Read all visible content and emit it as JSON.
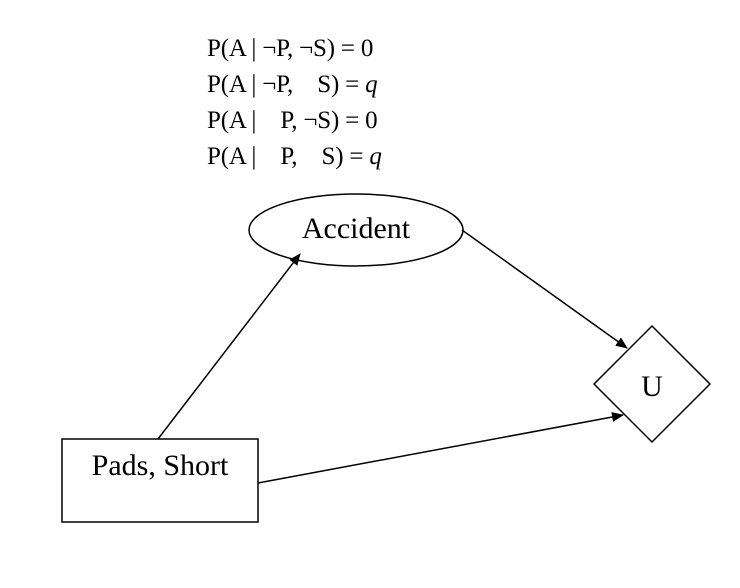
{
  "cpt": {
    "rows": [
      {
        "lhs": "P(A | ¬P, ¬S) = ",
        "value": "0"
      },
      {
        "lhs": "P(A | ¬P,    S) = ",
        "value": "q"
      },
      {
        "lhs": "P(A |    P, ¬S) = ",
        "value": "0"
      },
      {
        "lhs": "P(A |    P,    S) = ",
        "value": "q"
      }
    ]
  },
  "nodes": {
    "accident": {
      "label": "Accident",
      "shape": "ellipse"
    },
    "pads_short": {
      "label": "Pads, Short",
      "shape": "rectangle"
    },
    "utility": {
      "label": "U",
      "shape": "diamond"
    }
  },
  "edges": [
    {
      "from": "pads_short",
      "to": "accident"
    },
    {
      "from": "accident",
      "to": "utility"
    },
    {
      "from": "pads_short",
      "to": "utility"
    }
  ]
}
